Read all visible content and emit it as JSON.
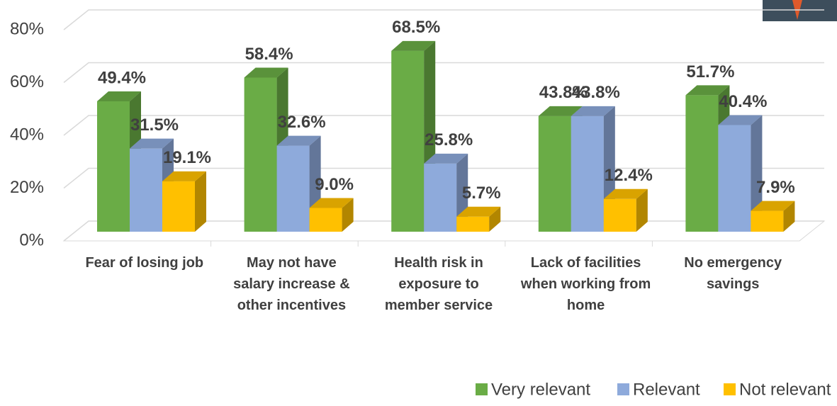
{
  "chart_data": {
    "type": "bar3d",
    "categories": [
      "Fear of losing job",
      "May not have salary increase & other incentives",
      "Health risk in exposure to member service",
      "Lack of facilities when working from home",
      "No emergency savings"
    ],
    "series": [
      {
        "name": "Very relevant",
        "color": "#6aac46",
        "values": [
          49.4,
          58.4,
          68.5,
          43.8,
          51.7
        ],
        "value_labels": [
          "49.4%",
          "58.4%",
          "68.5%",
          "43.8%",
          "51.7%"
        ]
      },
      {
        "name": "Relevant",
        "color": "#8eaadb",
        "values": [
          31.5,
          32.6,
          25.8,
          43.8,
          40.4
        ],
        "value_labels": [
          "31.5%",
          "32.6%",
          "25.8%",
          "43.8%",
          "40.4%"
        ]
      },
      {
        "name": "Not relevant",
        "color": "#ffc000",
        "values": [
          19.1,
          9.0,
          5.7,
          12.4,
          7.9
        ],
        "value_labels": [
          "19.1%",
          "9.0%",
          "5.7%",
          "12.4%",
          "7.9%"
        ]
      }
    ],
    "ylim": [
      0,
      80
    ],
    "yticks": [
      {
        "value": 0,
        "label": "0%"
      },
      {
        "value": 20,
        "label": "20%"
      },
      {
        "value": 40,
        "label": "40%"
      },
      {
        "value": 60,
        "label": "60%"
      },
      {
        "value": 80,
        "label": "80%"
      }
    ],
    "grid": true,
    "legend": "bottom-right"
  }
}
